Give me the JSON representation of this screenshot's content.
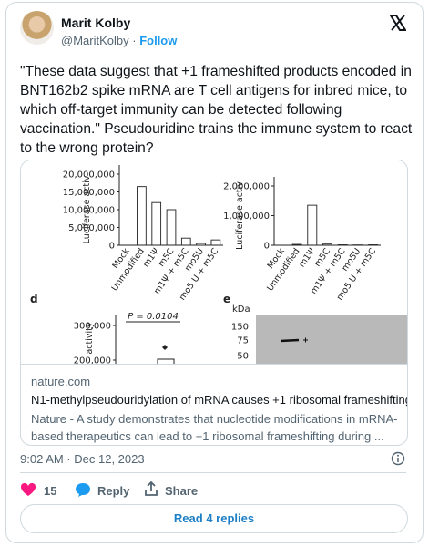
{
  "author": {
    "name": "Marit Kolby",
    "handle": "@MaritKolby",
    "separator": "·",
    "follow": "Follow"
  },
  "text": "\"These data suggest that +1 frameshifted products encoded in BNT162b2 spike mRNA are T cell antigens for inbred mice, to which off-target immunity can be detected following vaccination.\" Pseudouridine trains the immune system to react to the wrong protein?",
  "card": {
    "image": {
      "left_chart": {
        "type": "bar",
        "y_label": "Luciferase activ",
        "categories": [
          "Mock",
          "Unmodified",
          "m1Ψ",
          "m5C",
          "m1Ψ + m5C",
          "mo5U",
          "mo5 U + m5C"
        ],
        "values": [
          0,
          16500000,
          12000000,
          10000000,
          2000000,
          500000,
          1500000
        ],
        "ylim": [
          0,
          20000000
        ],
        "yticks": [
          {
            "value": 0,
            "label": "0"
          },
          {
            "value": 5000000,
            "label": "5,000,000"
          },
          {
            "value": 10000000,
            "label": "10,000,000"
          },
          {
            "value": 15000000,
            "label": "15,000,000"
          },
          {
            "value": 20000000,
            "label": "20,000,000"
          }
        ]
      },
      "right_chart": {
        "type": "bar",
        "y_label": "Luciferase activ",
        "categories": [
          "Mock",
          "Unmodified",
          "m1Ψ",
          "m5C",
          "m1Ψ + m5C",
          "mo5U",
          "mo5 U + m5C"
        ],
        "values": [
          0,
          30000,
          1350000,
          40000,
          15000,
          10000,
          15000
        ],
        "ylim": [
          0,
          2000000
        ],
        "yticks": [
          {
            "value": 0,
            "label": "0"
          },
          {
            "value": 1000000,
            "label": "1,000,000"
          },
          {
            "value": 2000000,
            "label": "2,000,000"
          }
        ]
      },
      "panel_d": {
        "letter": "d",
        "y_label": "activity",
        "p_value": "P = 0.0104",
        "yticks": [
          {
            "value": 300000,
            "label": "300,000"
          },
          {
            "value": 200000,
            "label": "200,000"
          }
        ]
      },
      "panel_e": {
        "letter": "e",
        "unit": "kDa",
        "markers": [
          150,
          75,
          50
        ]
      }
    },
    "domain": "nature.com",
    "title": "N1-methylpseudouridylation of mRNA causes +1 ribosomal frameshifting",
    "description": "Nature - A study demonstrates that nucleotide modifications in mRNA-based therapeutics can lead to +1 ribosomal frameshifting during ..."
  },
  "timestamp": "9:02 AM · Dec 12, 2023",
  "actions": {
    "likes": 15,
    "reply": "Reply",
    "share": "Share"
  },
  "read_replies": "Read 4 replies"
}
